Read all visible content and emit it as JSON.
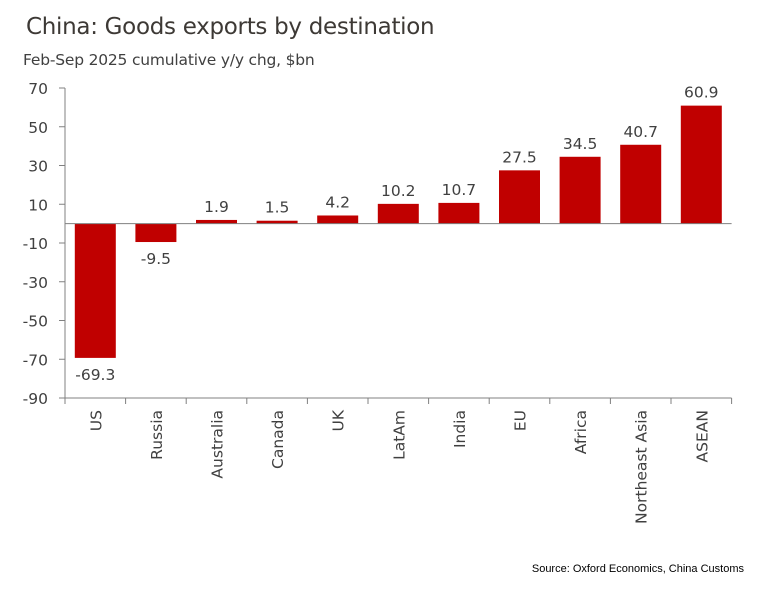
{
  "chart_data": {
    "type": "bar",
    "title": "China: Goods exports by destination",
    "subtitle": "Feb-Sep 2025 cumulative  y/y chg, $bn",
    "categories": [
      "US",
      "Russia",
      "Australia",
      "Canada",
      "UK",
      "LatAm",
      "India",
      "EU",
      "Africa",
      "Northeast Asia",
      "ASEAN"
    ],
    "values": [
      -69.3,
      -9.5,
      1.9,
      1.5,
      4.2,
      10.2,
      10.7,
      27.5,
      34.5,
      40.7,
      60.9
    ],
    "data_labels": [
      "-69.3",
      "-9.5",
      "1.9",
      "1.5",
      "4.2",
      "10.2",
      "10.7",
      "27.5",
      "34.5",
      "40.7",
      "60.9"
    ],
    "ylim": [
      -90,
      70
    ],
    "yticks": [
      70,
      50,
      30,
      10,
      -10,
      -30,
      -50,
      -70,
      -90
    ],
    "xlabel": "",
    "ylabel": "",
    "grid": false,
    "bar_color": "#c00000",
    "source": "Source: Oxford Economics, China Customs"
  }
}
